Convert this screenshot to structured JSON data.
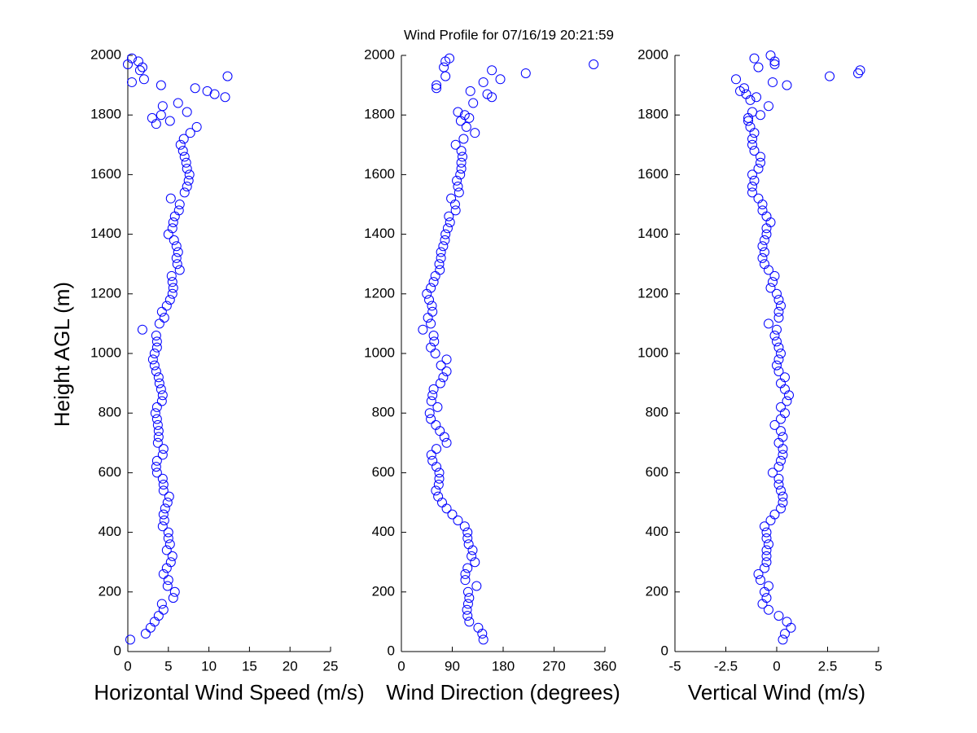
{
  "chart_data": [
    {
      "type": "scatter",
      "ylabel": "Height AGL (m)",
      "xlabel": "Horizontal Wind Speed (m/s)",
      "color": "#0000ff",
      "xlim": [
        0,
        25
      ],
      "xticks": [
        0,
        5,
        10,
        15,
        20,
        25
      ],
      "ylim": [
        0,
        2000
      ],
      "yticks": [
        0,
        200,
        400,
        600,
        800,
        1000,
        1200,
        1400,
        1600,
        1800,
        2000
      ],
      "x": [
        0.3,
        2.2,
        2.8,
        3.3,
        3.8,
        4.4,
        4.2,
        5.6,
        5.8,
        4.9,
        5.0,
        4.4,
        4.8,
        5.3,
        5.5,
        4.8,
        5.2,
        5.0,
        5.0,
        4.3,
        4.5,
        4.4,
        4.6,
        4.9,
        5.1,
        4.4,
        4.4,
        4.3,
        3.6,
        3.5,
        3.6,
        4.3,
        4.4,
        3.7,
        3.8,
        3.8,
        3.7,
        3.6,
        3.4,
        3.6,
        4.2,
        4.3,
        4.1,
        3.9,
        3.8,
        3.5,
        3.3,
        3.1,
        3.3,
        3.6,
        3.6,
        3.5,
        1.8,
        3.9,
        4.5,
        4.2,
        4.8,
        5.2,
        5.5,
        5.6,
        5.5,
        5.4,
        6.4,
        6.1,
        6.0,
        6.2,
        6.0,
        5.7,
        5.0,
        5.5,
        5.6,
        5.8,
        6.3,
        6.4,
        5.3,
        7.0,
        7.3,
        7.5,
        7.6,
        7.3,
        7.2,
        7.0,
        6.8,
        6.5,
        6.9,
        7.7,
        8.5,
        3.0,
        3.5,
        4.1,
        5.2,
        4.3,
        7.3,
        6.2,
        4.1,
        8.3,
        9.8,
        10.7,
        12.0,
        12.3,
        2.0,
        0.5,
        1.5,
        0.0,
        0.5,
        1.3,
        1.8
      ],
      "y": [
        40,
        60,
        80,
        100,
        120,
        140,
        160,
        180,
        200,
        220,
        240,
        260,
        280,
        300,
        320,
        340,
        360,
        380,
        400,
        420,
        440,
        460,
        480,
        500,
        520,
        540,
        560,
        580,
        600,
        620,
        640,
        660,
        680,
        700,
        720,
        740,
        760,
        780,
        800,
        820,
        840,
        860,
        880,
        900,
        920,
        940,
        960,
        980,
        1000,
        1020,
        1040,
        1060,
        1080,
        1100,
        1120,
        1140,
        1160,
        1180,
        1200,
        1220,
        1240,
        1260,
        1280,
        1300,
        1320,
        1340,
        1360,
        1380,
        1400,
        1420,
        1440,
        1460,
        1480,
        1500,
        1520,
        1540,
        1560,
        1580,
        1600,
        1620,
        1640,
        1660,
        1680,
        1700,
        1720,
        1740,
        1760,
        1790,
        1770,
        1800,
        1780,
        1830,
        1810,
        1840,
        1900,
        1890,
        1880,
        1870,
        1860,
        1930,
        1920,
        1910,
        1950,
        1970,
        1990,
        1980,
        1960
      ]
    },
    {
      "type": "scatter",
      "title": "Wind Profile for  07/16/19 20:21:59",
      "xlabel": "Wind Direction (degrees)",
      "color": "#0000ff",
      "xlim": [
        0,
        360
      ],
      "xticks": [
        0,
        90,
        180,
        270,
        360
      ],
      "ylim": [
        0,
        2000
      ],
      "yticks": [
        0,
        200,
        400,
        600,
        800,
        1000,
        1200,
        1400,
        1600,
        1800,
        2000
      ],
      "x": [
        145,
        143,
        136,
        120,
        117,
        116,
        118,
        120,
        118,
        133,
        113,
        113,
        117,
        130,
        124,
        126,
        119,
        117,
        117,
        112,
        100,
        90,
        80,
        72,
        65,
        61,
        66,
        67,
        67,
        62,
        55,
        53,
        62,
        80,
        76,
        68,
        61,
        52,
        50,
        64,
        53,
        55,
        57,
        69,
        74,
        80,
        70,
        80,
        60,
        52,
        58,
        57,
        38,
        52,
        47,
        55,
        54,
        49,
        45,
        52,
        57,
        60,
        68,
        67,
        70,
        70,
        74,
        77,
        78,
        82,
        86,
        84,
        96,
        95,
        88,
        102,
        100,
        98,
        104,
        106,
        106,
        108,
        106,
        96,
        110,
        130,
        115,
        105,
        112,
        100,
        120,
        160,
        122,
        145,
        175,
        160,
        220,
        340,
        85,
        78,
        75,
        78,
        62,
        62,
        127,
        152
      ],
      "y": [
        40,
        60,
        80,
        100,
        120,
        140,
        160,
        180,
        200,
        220,
        240,
        260,
        280,
        300,
        320,
        340,
        360,
        380,
        400,
        420,
        440,
        460,
        480,
        500,
        520,
        540,
        560,
        580,
        600,
        620,
        640,
        660,
        680,
        700,
        720,
        740,
        760,
        780,
        800,
        820,
        840,
        860,
        880,
        900,
        920,
        940,
        960,
        980,
        1000,
        1020,
        1040,
        1060,
        1080,
        1100,
        1120,
        1140,
        1160,
        1180,
        1200,
        1220,
        1240,
        1260,
        1280,
        1300,
        1320,
        1340,
        1360,
        1380,
        1400,
        1420,
        1440,
        1460,
        1480,
        1500,
        1520,
        1540,
        1560,
        1580,
        1600,
        1620,
        1640,
        1660,
        1680,
        1700,
        1720,
        1740,
        1760,
        1780,
        1800,
        1810,
        1790,
        1860,
        1880,
        1910,
        1920,
        1950,
        1940,
        1970,
        1990,
        1980,
        1960,
        1930,
        1900,
        1890,
        1840,
        1870
      ]
    },
    {
      "type": "scatter",
      "xlabel": "Vertical Wind (m/s)",
      "color": "#0000ff",
      "xlim": [
        -5,
        5
      ],
      "xticks": [
        -5,
        -2.5,
        0,
        2.5,
        5
      ],
      "ylim": [
        0,
        2000
      ],
      "yticks": [
        0,
        200,
        400,
        600,
        800,
        1000,
        1200,
        1400,
        1600,
        1800,
        2000
      ],
      "x": [
        0.3,
        0.4,
        0.7,
        0.5,
        0.1,
        -0.4,
        -0.7,
        -0.5,
        -0.6,
        -0.4,
        -0.8,
        -0.9,
        -0.6,
        -0.5,
        -0.5,
        -0.5,
        -0.4,
        -0.5,
        -0.5,
        -0.6,
        -0.3,
        -0.1,
        0.2,
        0.3,
        0.3,
        0.2,
        0.1,
        0.1,
        -0.2,
        0.1,
        0.2,
        0.3,
        0.3,
        0.1,
        0.3,
        0.2,
        -0.1,
        0.2,
        0.4,
        0.2,
        0.5,
        0.6,
        0.4,
        0.2,
        0.4,
        0.1,
        0.0,
        0.1,
        0.2,
        0.1,
        0.0,
        -0.1,
        0.0,
        -0.4,
        0.1,
        0.1,
        0.2,
        0.1,
        0.0,
        -0.3,
        -0.2,
        -0.1,
        -0.4,
        -0.6,
        -0.7,
        -0.6,
        -0.7,
        -0.6,
        -0.5,
        -0.5,
        -0.3,
        -0.5,
        -0.7,
        -0.7,
        -0.9,
        -1.2,
        -1.2,
        -1.1,
        -1.2,
        -0.9,
        -0.8,
        -0.8,
        -1.1,
        -1.2,
        -1.2,
        -1.1,
        -1.3,
        -1.4,
        -1.4,
        -1.2,
        -0.8,
        -0.4,
        -1.3,
        -1.0,
        -1.8,
        -1.5,
        -2.0,
        -1.6,
        -0.2,
        0.5,
        2.6,
        4.0,
        4.1,
        -0.9,
        -1.1,
        -0.3,
        -0.1,
        -0.1
      ],
      "y": [
        40,
        60,
        80,
        100,
        120,
        140,
        160,
        180,
        200,
        220,
        240,
        260,
        280,
        300,
        320,
        340,
        360,
        380,
        400,
        420,
        440,
        460,
        480,
        500,
        520,
        540,
        560,
        580,
        600,
        620,
        640,
        660,
        680,
        700,
        720,
        740,
        760,
        780,
        800,
        820,
        840,
        860,
        880,
        900,
        920,
        940,
        960,
        980,
        1000,
        1020,
        1040,
        1060,
        1080,
        1100,
        1120,
        1140,
        1160,
        1180,
        1200,
        1220,
        1240,
        1260,
        1280,
        1300,
        1320,
        1340,
        1360,
        1380,
        1400,
        1420,
        1440,
        1460,
        1480,
        1500,
        1520,
        1540,
        1560,
        1580,
        1600,
        1620,
        1640,
        1660,
        1680,
        1700,
        1720,
        1740,
        1760,
        1780,
        1790,
        1810,
        1800,
        1830,
        1850,
        1860,
        1880,
        1870,
        1920,
        1890,
        1910,
        1900,
        1930,
        1940,
        1950,
        1960,
        1990,
        2000,
        1980,
        1970
      ]
    }
  ]
}
